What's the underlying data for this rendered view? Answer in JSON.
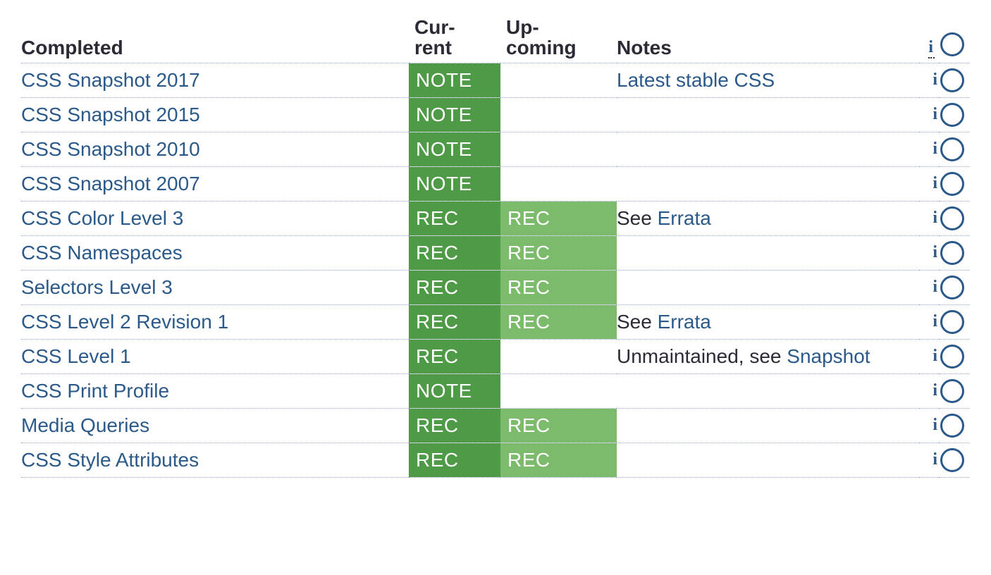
{
  "colors": {
    "link": "#2b5a8a",
    "text": "#2b2b36",
    "badge_current_bg": "#4f9a46",
    "badge_upcoming_bg": "#7cbb6b",
    "badge_fg": "#ffffff",
    "row_border": "#9aa6d6",
    "radio_border": "#2b5a8a"
  },
  "header": {
    "completed": "Completed",
    "current_line1": "Cur-",
    "current_line2": "rent",
    "upcoming_line1": "Up-",
    "upcoming_line2": "coming",
    "notes": "Notes",
    "info_glyph": "i"
  },
  "info_glyph": "i",
  "rows": [
    {
      "name": "CSS Snapshot 2017",
      "current": "NOTE",
      "upcoming": "",
      "notes": [
        {
          "text": "Latest stable CSS",
          "link": true
        }
      ]
    },
    {
      "name": "CSS Snapshot 2015",
      "current": "NOTE",
      "upcoming": "",
      "notes": []
    },
    {
      "name": "CSS Snapshot 2010",
      "current": "NOTE",
      "upcoming": "",
      "notes": []
    },
    {
      "name": "CSS Snapshot 2007",
      "current": "NOTE",
      "upcoming": "",
      "notes": []
    },
    {
      "name": "CSS Color Level 3",
      "current": "REC",
      "upcoming": "REC",
      "notes": [
        {
          "text": "See ",
          "link": false
        },
        {
          "text": "Errata",
          "link": true
        }
      ]
    },
    {
      "name": "CSS Namespaces",
      "current": "REC",
      "upcoming": "REC",
      "notes": []
    },
    {
      "name": "Selectors Level 3",
      "current": "REC",
      "upcoming": "REC",
      "notes": []
    },
    {
      "name": "CSS Level 2 Revision 1",
      "current": "REC",
      "upcoming": "REC",
      "notes": [
        {
          "text": "See ",
          "link": false
        },
        {
          "text": "Errata",
          "link": true
        }
      ]
    },
    {
      "name": "CSS Level 1",
      "current": "REC",
      "upcoming": "",
      "notes": [
        {
          "text": "Unmaintained, see ",
          "link": false
        },
        {
          "text": "Snapshot",
          "link": true
        }
      ]
    },
    {
      "name": "CSS Print Profile",
      "current": "NOTE",
      "upcoming": "",
      "notes": []
    },
    {
      "name": "Media Queries",
      "current": "REC",
      "upcoming": "REC",
      "notes": []
    },
    {
      "name": "CSS Style Attributes",
      "current": "REC",
      "upcoming": "REC",
      "notes": []
    }
  ]
}
